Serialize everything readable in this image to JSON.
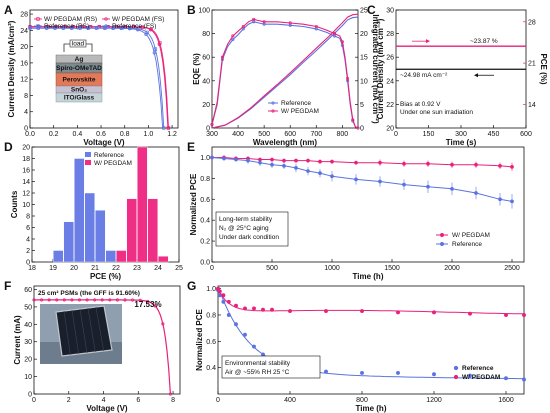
{
  "chart_data": [
    {
      "id": "A",
      "type": "line",
      "panel_label": "A",
      "xlabel": "Voltage (V)",
      "ylabel": "Current Density (mA/cm²)",
      "xlim": [
        0,
        1.25
      ],
      "ylim": [
        0,
        29
      ],
      "xticks": [
        "0.0",
        "0.2",
        "0.4",
        "0.6",
        "0.8",
        "1.0",
        "1.2"
      ],
      "yticks": [
        "0",
        "4",
        "8",
        "12",
        "16",
        "20",
        "24",
        "28"
      ],
      "series": [
        {
          "name": "W/ PEGDAM (RS)",
          "color": "#e8217a",
          "marker": "square",
          "Jsc": 24.9,
          "Voc": 1.17,
          "m": 25
        },
        {
          "name": "W/ PEGDAM (FS)",
          "color": "#e8217a",
          "marker": "circle",
          "Jsc": 24.9,
          "Voc": 1.165,
          "m": 24
        },
        {
          "name": "Reference (RS)",
          "color": "#5a73e0",
          "marker": "square",
          "Jsc": 24.6,
          "Voc": 1.13,
          "m": 22
        },
        {
          "name": "Reference (FS)",
          "color": "#5a73e0",
          "marker": "circle",
          "Jsc": 24.5,
          "Voc": 1.12,
          "m": 20
        }
      ],
      "inset": {
        "layers": [
          "load",
          "Ag",
          "Spiro-OMeTAD",
          "Perovskite",
          "SnO₂",
          "ITO/Glass"
        ]
      }
    },
    {
      "id": "B",
      "type": "line",
      "panel_label": "B",
      "xlabel": "Wavelength (nm)",
      "ylabel": "EQE (%)",
      "ylabel_right": "Integrated current (mA cm⁻²)",
      "xlim": [
        300,
        860
      ],
      "ylim": [
        0,
        100
      ],
      "ylim_right": [
        0,
        25
      ],
      "xticks": [
        "300",
        "400",
        "500",
        "600",
        "700",
        "800"
      ],
      "yticks": [
        "0",
        "20",
        "40",
        "60",
        "80",
        "100"
      ],
      "yticks_right": [
        "0",
        "5",
        "10",
        "15",
        "20",
        "25"
      ],
      "series": [
        {
          "name": "Reference",
          "color": "#5a73e0",
          "eqe_x": [
            300,
            320,
            340,
            360,
            380,
            400,
            420,
            440,
            460,
            480,
            500,
            550,
            600,
            650,
            700,
            740,
            770,
            790,
            800,
            810,
            820,
            830,
            840,
            850,
            860
          ],
          "eqe_y": [
            3,
            20,
            58,
            69,
            75,
            79,
            84,
            88,
            90,
            89,
            88,
            88,
            87,
            86,
            84,
            81,
            78,
            76,
            70,
            58,
            40,
            20,
            6,
            1,
            0
          ],
          "int_x": [
            300,
            350,
            400,
            450,
            500,
            550,
            600,
            650,
            700,
            750,
            800,
            820,
            840,
            860
          ],
          "int_y": [
            0,
            0.6,
            2.1,
            4.1,
            6.5,
            8.9,
            11.3,
            13.9,
            16.4,
            19,
            21.7,
            22.9,
            23.4,
            23.5
          ]
        },
        {
          "name": "W/ PEGDAM",
          "color": "#e8217a",
          "eqe_x": [
            300,
            320,
            340,
            360,
            380,
            400,
            420,
            440,
            460,
            480,
            500,
            550,
            600,
            650,
            700,
            740,
            770,
            790,
            800,
            810,
            820,
            830,
            840,
            850,
            860
          ],
          "eqe_y": [
            3,
            22,
            60,
            71,
            78,
            82,
            86,
            90,
            92,
            91,
            90,
            90,
            89,
            88,
            86,
            83,
            80,
            78,
            73,
            60,
            42,
            22,
            7,
            1,
            0
          ],
          "int_x": [
            300,
            350,
            400,
            450,
            500,
            550,
            600,
            650,
            700,
            750,
            800,
            820,
            840,
            860
          ],
          "int_y": [
            0,
            0.6,
            2.2,
            4.3,
            6.8,
            9.2,
            11.7,
            14.3,
            16.9,
            19.5,
            22.3,
            23.5,
            24,
            24.1
          ]
        }
      ]
    },
    {
      "id": "C",
      "type": "line",
      "panel_label": "C",
      "xlabel": "Time (s)",
      "ylabel": "Current Density (mA cm⁻²)",
      "ylabel_right": "PCE (%)",
      "xlim": [
        0,
        600
      ],
      "ylim": [
        20,
        30
      ],
      "ylim_right": [
        10,
        30
      ],
      "xticks": [
        "0",
        "150",
        "300",
        "450",
        "600"
      ],
      "yticks": [
        "20",
        "22",
        "24",
        "26",
        "28",
        "30"
      ],
      "yticks_right": [
        "14",
        "21",
        "28"
      ],
      "series": [
        {
          "name": "PCE",
          "color": "#e8217a",
          "value": 23.87,
          "axis": "right"
        },
        {
          "name": "Current Density",
          "color": "#111111",
          "value": 24.98,
          "axis": "left"
        }
      ],
      "annotations": [
        "~23.87 %",
        "~24.98 mA cm⁻²",
        "Bias at 0.92 V",
        "Under one sun irradiation"
      ]
    },
    {
      "id": "D",
      "type": "bar",
      "panel_label": "D",
      "xlabel": "PCE (%)",
      "ylabel": "Counts",
      "xlim": [
        18,
        25
      ],
      "ylim": [
        0,
        20
      ],
      "xticks": [
        "18",
        "19",
        "20",
        "21",
        "22",
        "23",
        "24",
        "25"
      ],
      "yticks": [
        "0",
        "2",
        "4",
        "6",
        "8",
        "10",
        "12",
        "14",
        "16",
        "18",
        "20"
      ],
      "bin_width": 0.5,
      "series": [
        {
          "name": "Reference",
          "color": "#6a7ee6",
          "bins": [
            19,
            19.5,
            20,
            20.5,
            21,
            21.5
          ],
          "counts": [
            2,
            7,
            18,
            12,
            9,
            2
          ]
        },
        {
          "name": "W/ PEGDAM",
          "color": "#ef2f85",
          "bins": [
            22,
            22.5,
            23,
            23.5,
            24
          ],
          "counts": [
            2,
            11,
            20,
            11,
            1
          ]
        }
      ]
    },
    {
      "id": "E",
      "type": "line",
      "panel_label": "E",
      "xlabel": "Time (h)",
      "ylabel": "Normalized PCE",
      "xlim": [
        0,
        2600
      ],
      "ylim": [
        0,
        1.1
      ],
      "xticks": [
        "0",
        "500",
        "1000",
        "1500",
        "2000",
        "2500"
      ],
      "yticks": [
        "0.0",
        "0.2",
        "0.4",
        "0.6",
        "0.8",
        "1.0"
      ],
      "series": [
        {
          "name": "W/ PEGDAM",
          "color": "#e8217a",
          "x": [
            0,
            100,
            200,
            300,
            400,
            500,
            600,
            700,
            800,
            900,
            1000,
            1200,
            1400,
            1600,
            1800,
            2000,
            2200,
            2400,
            2500
          ],
          "y": [
            1.0,
            1.0,
            0.99,
            0.99,
            0.98,
            0.98,
            0.97,
            0.97,
            0.97,
            0.96,
            0.96,
            0.95,
            0.95,
            0.94,
            0.94,
            0.93,
            0.93,
            0.92,
            0.91
          ],
          "err": [
            0.02,
            0.02,
            0.02,
            0.02,
            0.02,
            0.02,
            0.02,
            0.02,
            0.02,
            0.02,
            0.02,
            0.02,
            0.03,
            0.03,
            0.03,
            0.03,
            0.03,
            0.03,
            0.04
          ]
        },
        {
          "name": "Reference",
          "color": "#5a73e0",
          "x": [
            0,
            100,
            200,
            300,
            400,
            500,
            600,
            700,
            800,
            900,
            1000,
            1200,
            1400,
            1600,
            1800,
            2000,
            2200,
            2400,
            2500
          ],
          "y": [
            1.0,
            0.99,
            0.98,
            0.97,
            0.95,
            0.93,
            0.92,
            0.9,
            0.87,
            0.85,
            0.82,
            0.79,
            0.77,
            0.74,
            0.72,
            0.7,
            0.66,
            0.6,
            0.58
          ],
          "err": [
            0.02,
            0.02,
            0.02,
            0.03,
            0.03,
            0.03,
            0.03,
            0.04,
            0.04,
            0.04,
            0.05,
            0.05,
            0.05,
            0.05,
            0.06,
            0.06,
            0.06,
            0.06,
            0.07
          ]
        }
      ],
      "annotations": [
        "Long-term stability",
        "N₂ @ 25°C aging",
        "Under dark condition"
      ]
    },
    {
      "id": "F",
      "type": "line",
      "panel_label": "F",
      "xlabel": "Voltage (V)",
      "ylabel": "Current (mA)",
      "xlim": [
        0,
        8.4
      ],
      "ylim": [
        0,
        62
      ],
      "xticks": [
        "0",
        "2",
        "4",
        "6",
        "8"
      ],
      "yticks": [
        "0",
        "10",
        "20",
        "30",
        "40",
        "50",
        "60"
      ],
      "series": [
        {
          "name": "PSM",
          "color": "#e8217a",
          "Isc": 54,
          "Voc": 7.85,
          "m": 22
        }
      ],
      "annotations": [
        "25 cm² PSMs (the GFF is 91.60%)",
        "17.53%"
      ]
    },
    {
      "id": "G",
      "type": "scatter",
      "panel_label": "G",
      "xlabel": "Time (h)",
      "ylabel": "Normalized PCE",
      "xlim": [
        0,
        1700
      ],
      "ylim": [
        0.2,
        1.02
      ],
      "xticks": [
        "0",
        "400",
        "800",
        "1200",
        "1600"
      ],
      "yticks": [
        "0.4",
        "0.6",
        "0.8",
        "1.0"
      ],
      "series": [
        {
          "name": "Reference",
          "color": "#5a73e0",
          "x": [
            0,
            10,
            30,
            60,
            100,
            150,
            200,
            250,
            300,
            400,
            600,
            800,
            1000,
            1200,
            1400,
            1600,
            1700
          ],
          "y": [
            0.99,
            0.95,
            0.9,
            0.8,
            0.73,
            0.65,
            0.56,
            0.5,
            0.45,
            0.4,
            0.37,
            0.36,
            0.36,
            0.35,
            0.34,
            0.32,
            0.31
          ]
        },
        {
          "name": "W/ PEGDAM",
          "color": "#e8217a",
          "x": [
            0,
            10,
            30,
            60,
            100,
            150,
            200,
            250,
            300,
            400,
            600,
            800,
            1000,
            1200,
            1400,
            1600,
            1700
          ],
          "y": [
            1.0,
            0.98,
            0.95,
            0.9,
            0.87,
            0.85,
            0.85,
            0.84,
            0.84,
            0.83,
            0.83,
            0.83,
            0.82,
            0.82,
            0.81,
            0.8,
            0.8
          ]
        }
      ],
      "annotations": [
        "Environmental stability",
        "Air @ ~55% RH 25 °C"
      ]
    }
  ]
}
